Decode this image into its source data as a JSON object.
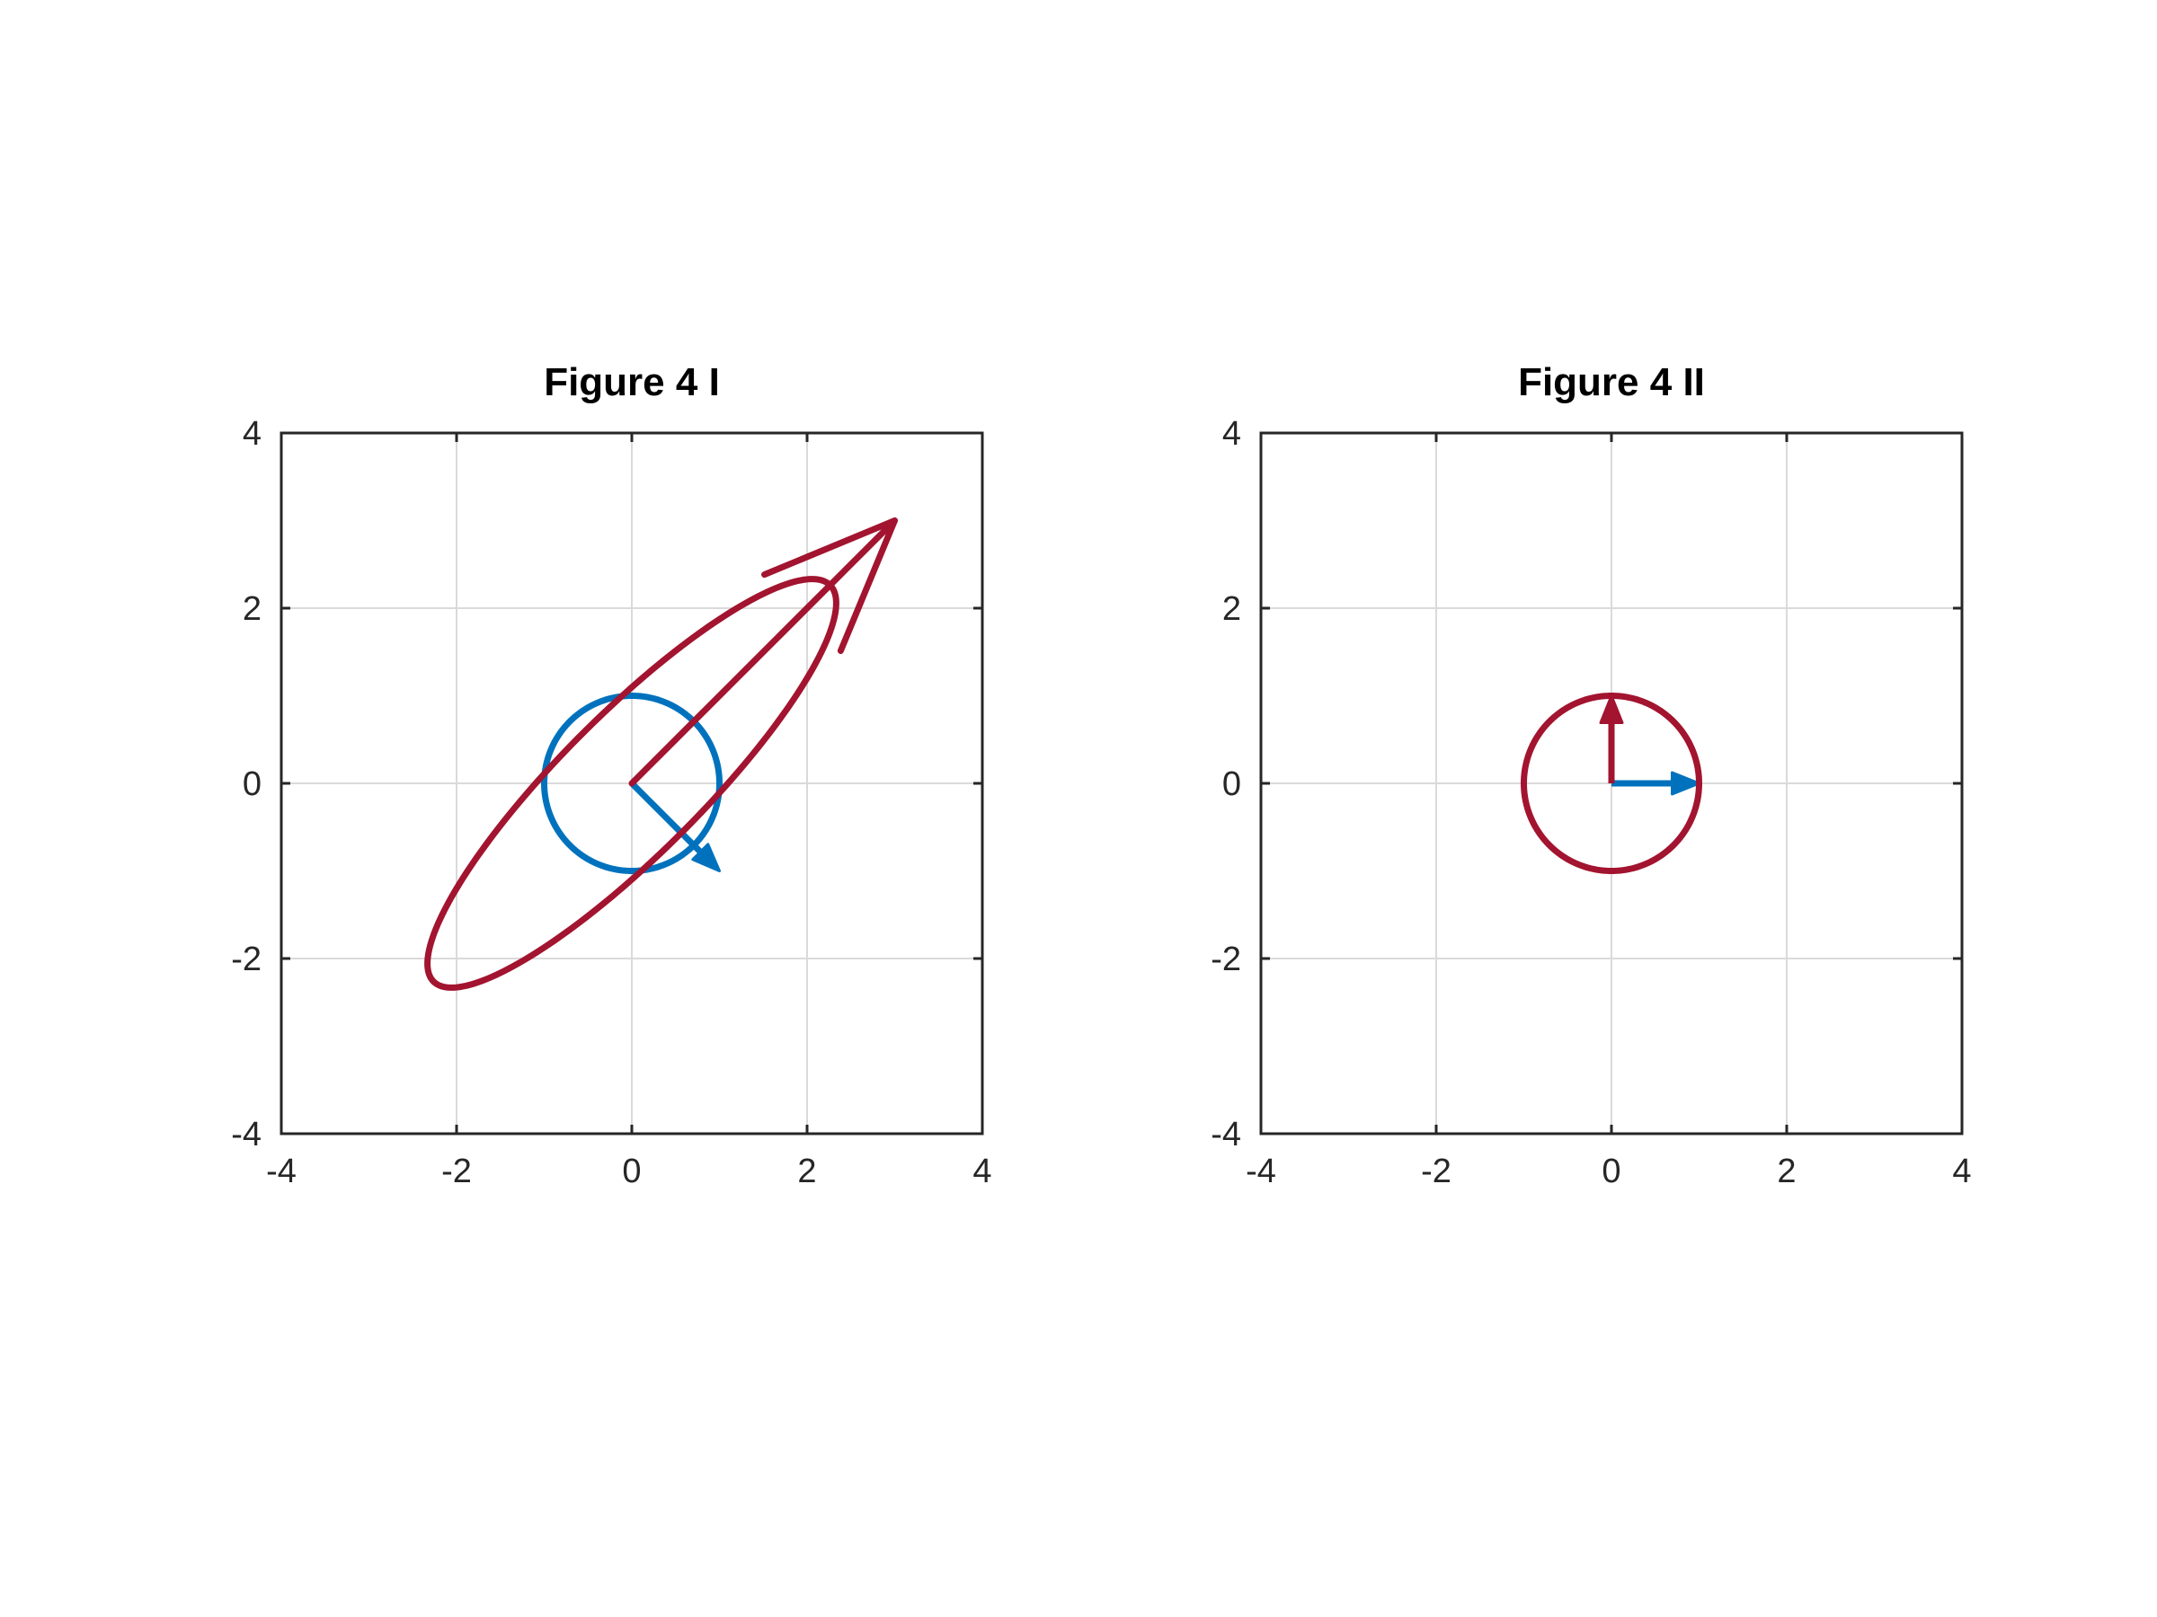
{
  "chart_data": [
    {
      "type": "line",
      "title": "Figure 4 I",
      "xlabel": "",
      "ylabel": "",
      "xlim": [
        -4,
        4
      ],
      "ylim": [
        -4,
        4
      ],
      "xticks": [
        -4,
        -2,
        0,
        2,
        4
      ],
      "yticks": [
        -4,
        -2,
        0,
        2,
        4
      ],
      "xtick_labels": [
        "-4",
        "-2",
        "0",
        "2",
        "4"
      ],
      "ytick_labels": [
        "-4",
        "-2",
        "0",
        "2",
        "4"
      ],
      "grid": true,
      "axis_equal": true,
      "series": [
        {
          "kind": "circle",
          "color": "#0072BD",
          "center": [
            0,
            0
          ],
          "radius": 1
        },
        {
          "kind": "arrow",
          "color": "#0072BD",
          "from": [
            0,
            0
          ],
          "to": [
            1,
            -1
          ]
        },
        {
          "kind": "ellipse",
          "color": "#A2142F",
          "center": [
            0,
            0
          ],
          "semi_major": 3.2,
          "semi_minor": 0.8,
          "angle_deg": 45
        },
        {
          "kind": "arrow",
          "color": "#A2142F",
          "from": [
            0,
            0
          ],
          "to": [
            3,
            3
          ]
        }
      ]
    },
    {
      "type": "line",
      "title": "Figure 4 II",
      "xlabel": "",
      "ylabel": "",
      "xlim": [
        -4,
        4
      ],
      "ylim": [
        -4,
        4
      ],
      "xticks": [
        -4,
        -2,
        0,
        2,
        4
      ],
      "yticks": [
        -4,
        -2,
        0,
        2,
        4
      ],
      "xtick_labels": [
        "-4",
        "-2",
        "0",
        "2",
        "4"
      ],
      "ytick_labels": [
        "-4",
        "-2",
        "0",
        "2",
        "4"
      ],
      "grid": true,
      "axis_equal": true,
      "series": [
        {
          "kind": "arrow",
          "color": "#0072BD",
          "from": [
            0,
            0
          ],
          "to": [
            1,
            0
          ]
        },
        {
          "kind": "circle",
          "color": "#A2142F",
          "center": [
            0,
            0
          ],
          "radius": 1
        },
        {
          "kind": "arrow",
          "color": "#A2142F",
          "from": [
            0,
            0
          ],
          "to": [
            0,
            1
          ]
        }
      ]
    }
  ]
}
